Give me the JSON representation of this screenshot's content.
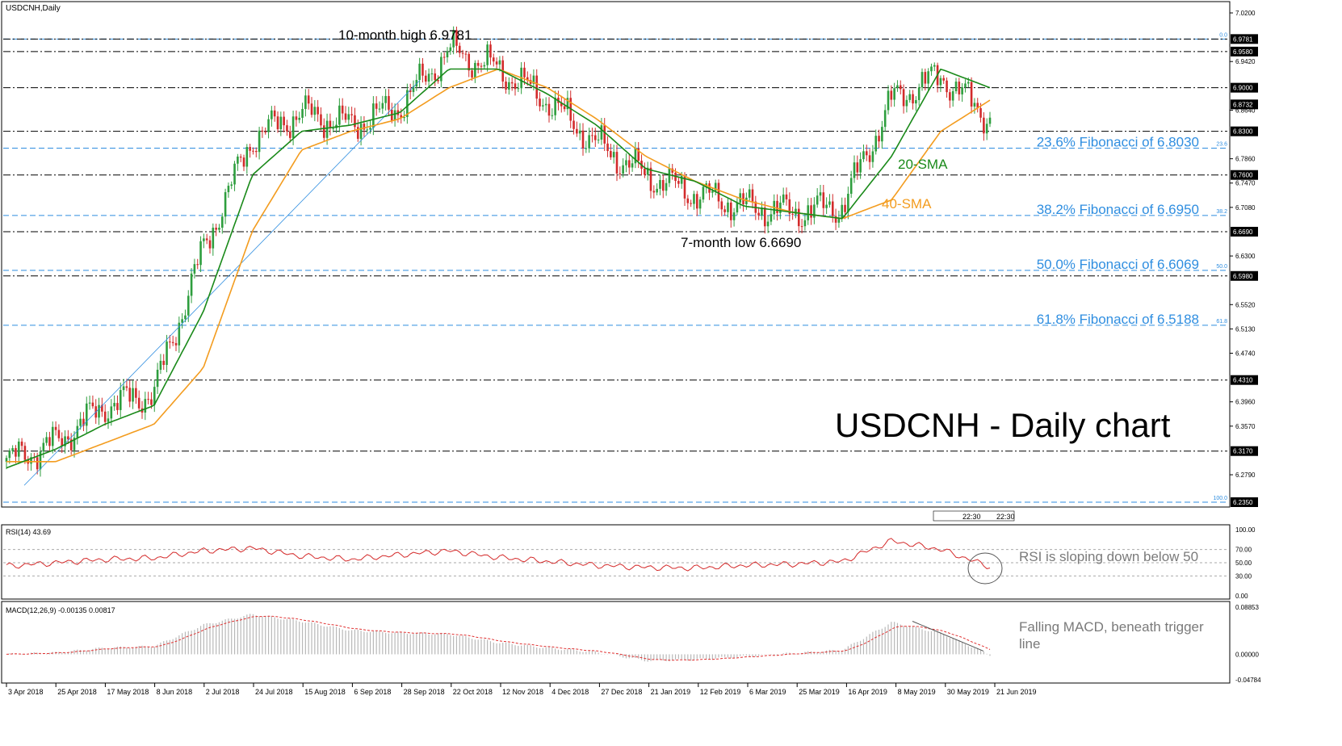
{
  "symbol_label": "USDCNH,Daily",
  "main_title": "USDCNH - Daily chart",
  "colors": {
    "bull": "#2e9e3e",
    "bear": "#d22b2b",
    "sma20": "#1a8a1a",
    "sma40": "#f39c1f",
    "fib": "#2f8ee0",
    "rsi": "#d42a2a",
    "macd_hist": "#b8b8b8",
    "macd_signal": "#e03030",
    "note": "#7a7a7a"
  },
  "price_axis": {
    "ylim": [
      6.235,
      7.02
    ],
    "ticks": [
      "7.0200",
      "6.9420",
      "6.8640",
      "6.7860",
      "6.7470",
      "6.7080",
      "6.6300",
      "6.5520",
      "6.5130",
      "6.4740",
      "6.3960",
      "6.3570",
      "6.2790"
    ]
  },
  "level_lines": [
    {
      "value": 6.9781,
      "label": "6.9781"
    },
    {
      "value": 6.958,
      "label": "6.9580"
    },
    {
      "value": 6.9,
      "label": "6.9000"
    },
    {
      "value": 6.83,
      "label": "6.8300"
    },
    {
      "value": 6.76,
      "label": "6.7600"
    },
    {
      "value": 6.669,
      "label": "6.6690"
    },
    {
      "value": 6.598,
      "label": "6.5980"
    },
    {
      "value": 6.431,
      "label": "6.4310"
    },
    {
      "value": 6.317,
      "label": "6.3170"
    }
  ],
  "current_price": {
    "value": 6.8732,
    "label": "6.8732"
  },
  "fib_levels": [
    {
      "value": 6.9781,
      "tag": "0.0",
      "text": ""
    },
    {
      "value": 6.803,
      "tag": "23.6",
      "text": "23.6% Fibonacci of 6.8030"
    },
    {
      "value": 6.695,
      "tag": "38.2",
      "text": "38.2% Fibonacci of 6.6950"
    },
    {
      "value": 6.6069,
      "tag": "50.0",
      "text": "50.0% Fibonacci of 6.6069"
    },
    {
      "value": 6.5188,
      "tag": "61.8",
      "text": "61.8% Fibonacci of 6.5188"
    },
    {
      "value": 6.235,
      "tag": "100.0",
      "text": "",
      "label": "6.2350"
    }
  ],
  "annotations": {
    "high": "10-month high 6.9781",
    "low": "7-month low 6.6690",
    "sma20": "20-SMA",
    "sma40": "40-SMA",
    "rsi_note": "RSI is sloping down below 50",
    "macd_note_line1": "Falling MACD, beneath trigger",
    "macd_note_line2": "line",
    "chart_time_1": "22:30",
    "chart_time_2": "22:30"
  },
  "x_axis": {
    "dates": [
      "3 Apr 2018",
      "25 Apr 2018",
      "17 May 2018",
      "8 Jun 2018",
      "2 Jul 2018",
      "24 Jul 2018",
      "15 Aug 2018",
      "6 Sep 2018",
      "28 Sep 2018",
      "22 Oct 2018",
      "12 Nov 2018",
      "4 Dec 2018",
      "27 Dec 2018",
      "21 Jan 2019",
      "12 Feb 2019",
      "6 Mar 2019",
      "25 Mar 2019",
      "16 Apr 2019",
      "8 May 2019",
      "30 May 2019",
      "21 Jun 2019"
    ]
  },
  "rsi": {
    "label": "RSI(14) 43.69",
    "ticks": [
      "100.00",
      "70.00",
      "50.00",
      "30.00",
      "0.00"
    ],
    "ylim": [
      0,
      100
    ]
  },
  "macd": {
    "label": "MACD(12,26,9) -0.00135 0.00817",
    "ticks": [
      "0.08853",
      "0.00000",
      "-0.04784"
    ],
    "ylim": [
      -0.04784,
      0.08853
    ]
  },
  "chart_data": {
    "type": "line",
    "title": "USDCNH - Daily chart",
    "x": [
      "3 Apr 2018",
      "25 Apr 2018",
      "17 May 2018",
      "8 Jun 2018",
      "2 Jul 2018",
      "24 Jul 2018",
      "15 Aug 2018",
      "6 Sep 2018",
      "28 Sep 2018",
      "22 Oct 2018",
      "12 Nov 2018",
      "4 Dec 2018",
      "27 Dec 2018",
      "21 Jan 2019",
      "12 Feb 2019",
      "6 Mar 2019",
      "25 Mar 2019",
      "16 Apr 2019",
      "8 May 2019",
      "30 May 2019",
      "21 Jun 2019"
    ],
    "ylim": [
      6.235,
      7.02
    ],
    "series": [
      {
        "values": [
          6.3,
          6.33,
          6.39,
          6.41,
          6.64,
          6.82,
          6.86,
          6.84,
          6.87,
          6.96,
          6.93,
          6.88,
          6.81,
          6.76,
          6.73,
          6.71,
          6.7,
          6.71,
          6.88,
          6.92,
          6.85
        ]
      },
      {
        "name": "20-SMA",
        "values": [
          6.29,
          6.32,
          6.36,
          6.39,
          6.54,
          6.76,
          6.83,
          6.84,
          6.86,
          6.93,
          6.93,
          6.89,
          6.84,
          6.77,
          6.75,
          6.71,
          6.7,
          6.69,
          6.79,
          6.93,
          6.9
        ]
      },
      {
        "name": "40-SMA",
        "values": [
          6.3,
          6.3,
          6.33,
          6.36,
          6.45,
          6.67,
          6.8,
          6.83,
          6.85,
          6.9,
          6.93,
          6.9,
          6.85,
          6.79,
          6.75,
          6.72,
          6.7,
          6.69,
          6.72,
          6.83,
          6.88
        ]
      }
    ],
    "rsi_values": [
      45,
      50,
      55,
      57,
      68,
      72,
      60,
      55,
      62,
      68,
      58,
      52,
      46,
      43,
      42,
      46,
      48,
      52,
      83,
      70,
      44
    ],
    "macd_values": [
      0.0,
      0.003,
      0.012,
      0.015,
      0.055,
      0.075,
      0.062,
      0.045,
      0.04,
      0.038,
      0.022,
      0.012,
      0.004,
      -0.012,
      -0.01,
      -0.004,
      0.002,
      0.008,
      0.06,
      0.04,
      -0.001
    ]
  }
}
